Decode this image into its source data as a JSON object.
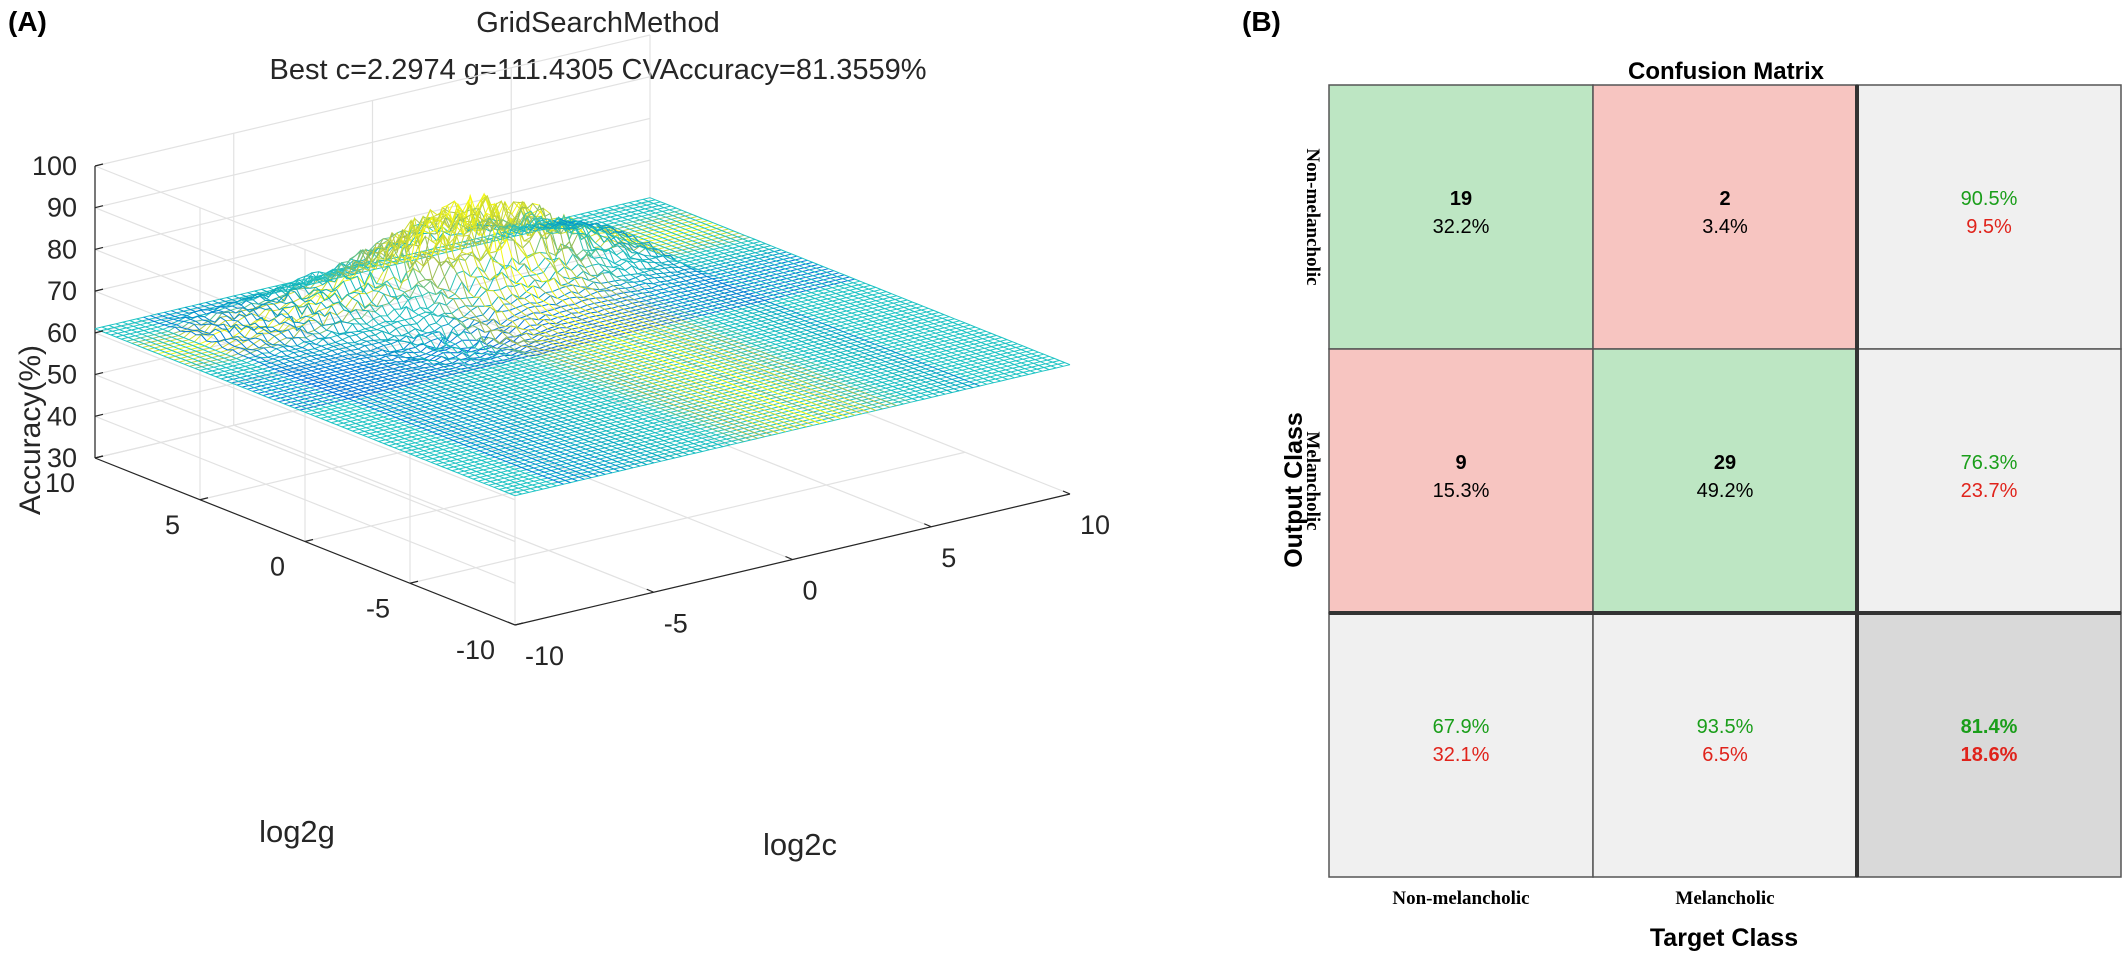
{
  "panel_a_label": "(A)",
  "panel_b_label": "(B)",
  "chart_data": [
    {
      "type": "surface3d",
      "title": "GridSearchMethod",
      "subtitle": "Best c=2.2974 g=111.4305 CVAccuracy=81.3559%",
      "xlabel": "log2c",
      "ylabel": "log2g",
      "zlabel": "Accuracy(%)",
      "xlim": [
        -10,
        10
      ],
      "ylim": [
        -10,
        10
      ],
      "zlim": [
        30,
        100
      ],
      "xticks": [
        "-10",
        "-5",
        "0",
        "5",
        "10"
      ],
      "yticks": [
        "-10",
        "-5",
        "0",
        "5",
        "10"
      ],
      "zticks": [
        "30",
        "40",
        "50",
        "60",
        "70",
        "80",
        "90",
        "100"
      ],
      "grid": true,
      "colormap": "parula",
      "mesh_color": "#1fc4c4",
      "baseline_accuracy": 61,
      "peak_accuracy": 81.3559,
      "best_log2c": 1.2,
      "best_log2g": 6.8
    },
    {
      "type": "confusion_matrix",
      "title": "Confusion Matrix",
      "xlabel": "Target Class",
      "ylabel": "Output Class",
      "classes": [
        "Non-melancholic",
        "Melancholic"
      ],
      "rows": [
        [
          {
            "count": "19",
            "pct": "32.2%",
            "kind": "correct"
          },
          {
            "count": "2",
            "pct": "3.4%",
            "kind": "wrong"
          },
          {
            "good": "90.5%",
            "bad": "9.5%",
            "kind": "summary"
          }
        ],
        [
          {
            "count": "9",
            "pct": "15.3%",
            "kind": "wrong"
          },
          {
            "count": "29",
            "pct": "49.2%",
            "kind": "correct"
          },
          {
            "good": "76.3%",
            "bad": "23.7%",
            "kind": "summary"
          }
        ],
        [
          {
            "good": "67.9%",
            "bad": "32.1%",
            "kind": "summary"
          },
          {
            "good": "93.5%",
            "bad": "6.5%",
            "kind": "summary"
          },
          {
            "good": "81.4%",
            "bad": "18.6%",
            "kind": "overall"
          }
        ]
      ],
      "colors": {
        "correct": "#bde6c3",
        "wrong": "#f7c5c1",
        "summary": "#f0f0f0",
        "overall": "#d9d9d9",
        "good_text": "#1a9e1a",
        "bad_text": "#e0231b"
      }
    }
  ]
}
